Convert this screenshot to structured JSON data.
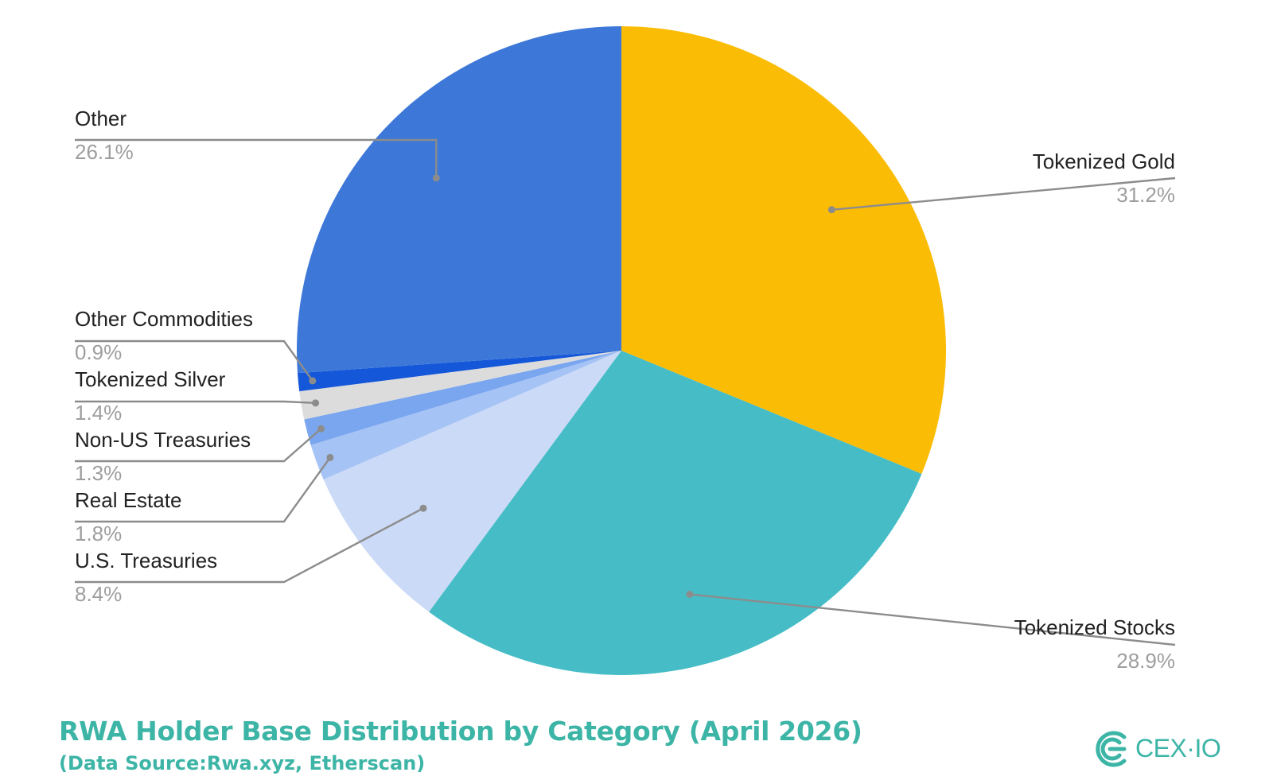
{
  "chart_data": {
    "type": "pie",
    "title": "RWA Holder Base Distribution by Category (April 2026)",
    "subtitle": "(Data Source:Rwa.xyz, Etherscan)",
    "unit": "%",
    "start_angle_deg": 0,
    "direction": "clockwise",
    "slices": [
      {
        "name": "Tokenized Gold",
        "value": 31.2,
        "label": "31.2%",
        "color": "#fbbc05",
        "label_side": "right"
      },
      {
        "name": "Tokenized Stocks",
        "value": 28.9,
        "label": "28.9%",
        "color": "#46bdc6",
        "label_side": "right"
      },
      {
        "name": "U.S. Treasuries",
        "value": 8.4,
        "label": "8.4%",
        "color": "#cbdaf7",
        "label_side": "left"
      },
      {
        "name": "Real Estate",
        "value": 1.8,
        "label": "1.8%",
        "color": "#a6c3f5",
        "label_side": "left"
      },
      {
        "name": "Non-US Treasuries",
        "value": 1.3,
        "label": "1.3%",
        "color": "#7aa6f0",
        "label_side": "left"
      },
      {
        "name": "Tokenized Silver",
        "value": 1.4,
        "label": "1.4%",
        "color": "#dcdcdc",
        "label_side": "left"
      },
      {
        "name": "Other Commodities",
        "value": 0.9,
        "label": "0.9%",
        "color": "#1557d9",
        "label_side": "left"
      },
      {
        "name": "Other",
        "value": 26.1,
        "label": "26.1%",
        "color": "#3d78d8",
        "label_side": "left"
      }
    ]
  },
  "brand": {
    "logo_text": "CEX·IO",
    "accent_color": "#3db5a6"
  }
}
